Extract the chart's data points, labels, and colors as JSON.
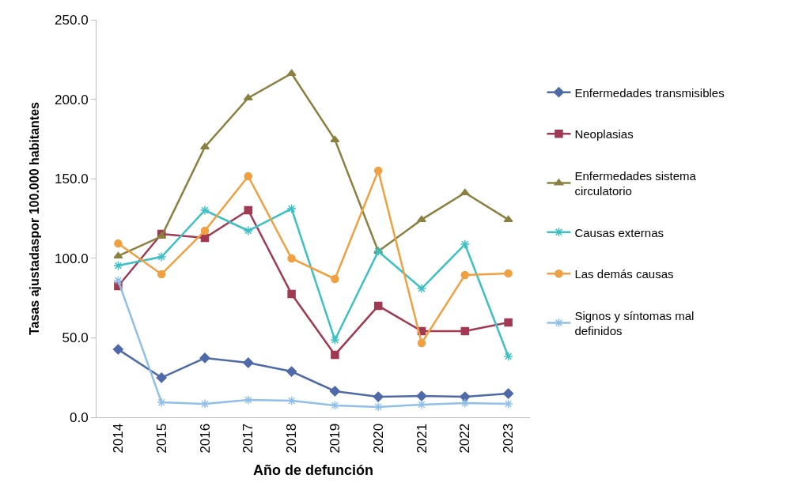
{
  "chart_data": {
    "type": "line",
    "xlabel": "Año de defunción",
    "ylabel": "Tasas ajustadaspor 100.000 habitantes",
    "categories": [
      "2014",
      "2015",
      "2016",
      "2017",
      "2018",
      "2019",
      "2020",
      "2021",
      "2022",
      "2023"
    ],
    "ylim": [
      0,
      250
    ],
    "yticks": [
      {
        "value": 0,
        "label": "0.0"
      },
      {
        "value": 50,
        "label": "50.0"
      },
      {
        "value": 100,
        "label": "100.0"
      },
      {
        "value": 150,
        "label": "150.0"
      },
      {
        "value": 200,
        "label": "200.0"
      },
      {
        "value": 250,
        "label": "250.0"
      }
    ],
    "grid": false,
    "legend": "right",
    "series": [
      {
        "name": "Enfermedades transmisibles",
        "color": "#4f6aa8",
        "marker": "diamond",
        "values": [
          42.7,
          24.9,
          37.3,
          34.3,
          28.8,
          16.4,
          12.9,
          13.4,
          12.9,
          14.9
        ]
      },
      {
        "name": "Neoplasias",
        "color": "#a03a52",
        "marker": "square",
        "values": [
          82.5,
          115.3,
          112.8,
          130.2,
          77.5,
          39.3,
          70.1,
          54.2,
          54.2,
          59.6
        ]
      },
      {
        "name": "Enfermedades sistema circulatorio",
        "color": "#8a8040",
        "marker": "triangle",
        "values": [
          101.4,
          113.8,
          170,
          200.8,
          216.2,
          174.5,
          104.4,
          124.3,
          141.2,
          124.3
        ]
      },
      {
        "name": "Causas externas",
        "color": "#3cc0c4",
        "marker": "cross",
        "values": [
          95.4,
          100.9,
          130.2,
          117.3,
          131.2,
          48.7,
          104.4,
          81,
          108.8,
          38.3
        ]
      },
      {
        "name": "Las demás causas",
        "color": "#f0a040",
        "marker": "circle",
        "values": [
          109.3,
          90,
          117.3,
          151.6,
          99.9,
          87,
          155.1,
          46.7,
          89.5,
          90.5
        ]
      },
      {
        "name": "Signos y síntomas mal definidos",
        "color": "#90c0ea",
        "marker": "cross",
        "values": [
          86,
          9.4,
          8.4,
          10.9,
          10.4,
          7.5,
          6.5,
          8,
          8.9,
          8.4
        ]
      }
    ]
  }
}
